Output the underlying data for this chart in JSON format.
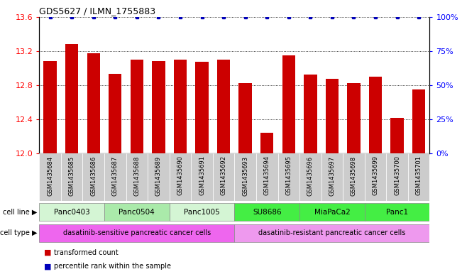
{
  "title": "GDS5627 / ILMN_1755883",
  "samples": [
    "GSM1435684",
    "GSM1435685",
    "GSM1435686",
    "GSM1435687",
    "GSM1435688",
    "GSM1435689",
    "GSM1435690",
    "GSM1435691",
    "GSM1435692",
    "GSM1435693",
    "GSM1435694",
    "GSM1435695",
    "GSM1435696",
    "GSM1435697",
    "GSM1435698",
    "GSM1435699",
    "GSM1435700",
    "GSM1435701"
  ],
  "bar_values": [
    13.08,
    13.28,
    13.17,
    12.93,
    13.1,
    13.08,
    13.1,
    13.07,
    13.1,
    12.82,
    12.24,
    13.15,
    12.92,
    12.87,
    12.82,
    12.9,
    12.42,
    12.75
  ],
  "percentile_values": [
    100,
    100,
    100,
    100,
    100,
    100,
    100,
    100,
    100,
    100,
    100,
    100,
    100,
    100,
    100,
    100,
    100,
    100
  ],
  "ylim_left": [
    12.0,
    13.6
  ],
  "ylim_right": [
    0,
    100
  ],
  "yticks_left": [
    12.0,
    12.4,
    12.8,
    13.2,
    13.6
  ],
  "yticks_right": [
    0,
    25,
    50,
    75,
    100
  ],
  "bar_color": "#cc0000",
  "percentile_color": "#0000bb",
  "cell_lines": [
    {
      "name": "Panc0403",
      "start": 0,
      "end": 3,
      "color": "#d4f5d4"
    },
    {
      "name": "Panc0504",
      "start": 3,
      "end": 6,
      "color": "#aaeaaa"
    },
    {
      "name": "Panc1005",
      "start": 6,
      "end": 9,
      "color": "#d4f5d4"
    },
    {
      "name": "SU8686",
      "start": 9,
      "end": 12,
      "color": "#44ee44"
    },
    {
      "name": "MiaPaCa2",
      "start": 12,
      "end": 15,
      "color": "#44ee44"
    },
    {
      "name": "Panc1",
      "start": 15,
      "end": 18,
      "color": "#44ee44"
    }
  ],
  "cell_types": [
    {
      "name": "dasatinib-sensitive pancreatic cancer cells",
      "start": 0,
      "end": 9,
      "color": "#ee66ee"
    },
    {
      "name": "dasatinib-resistant pancreatic cancer cells",
      "start": 9,
      "end": 18,
      "color": "#ee99ee"
    }
  ],
  "bg_color": "#ffffff"
}
